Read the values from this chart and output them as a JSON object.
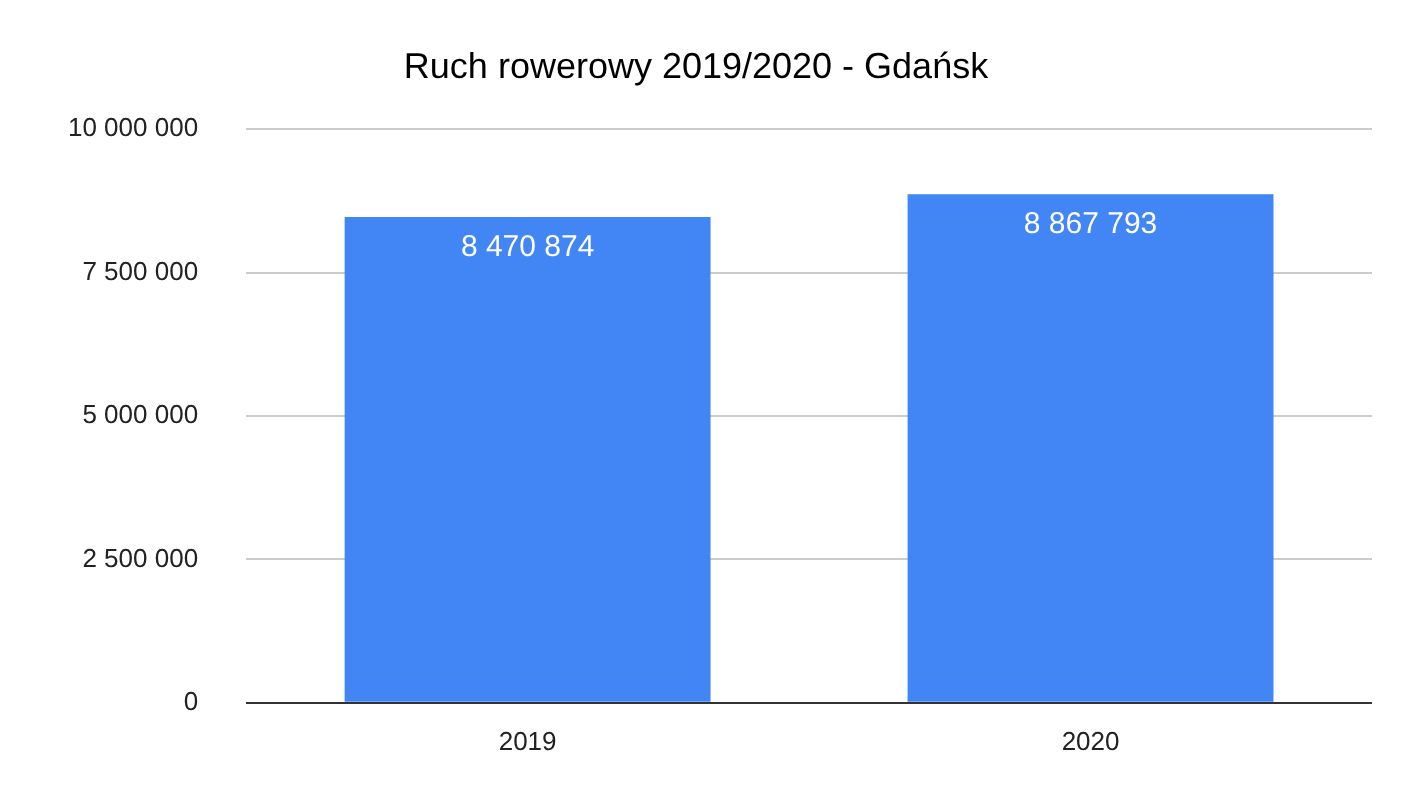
{
  "chart_data": {
    "type": "bar",
    "title": "Ruch rowerowy 2019/2020 - Gdańsk",
    "categories": [
      "2019",
      "2020"
    ],
    "values": [
      8470874,
      8867793
    ],
    "value_labels": [
      "8 470 874",
      "8 867 793"
    ],
    "color": "#4285f4",
    "ylim": [
      0,
      10000000
    ],
    "yticks": [
      {
        "value": 0,
        "label": "0"
      },
      {
        "value": 2500000,
        "label": "2 500 000"
      },
      {
        "value": 5000000,
        "label": "5 000 000"
      },
      {
        "value": 7500000,
        "label": "7 500 000"
      },
      {
        "value": 10000000,
        "label": "10 000 000"
      }
    ],
    "grid": "y",
    "legend": false
  }
}
